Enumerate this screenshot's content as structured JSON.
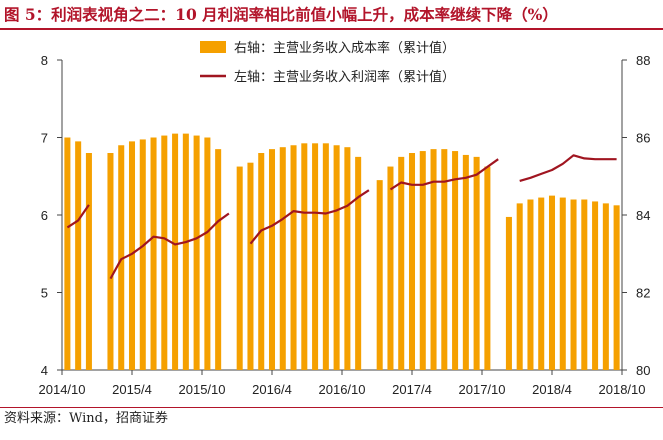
{
  "title": "图 5：利润表视角之二：10 月利润率相比前值小幅上升，成本率继续下降（%）",
  "source": "资料来源：Wind，招商证券",
  "colors": {
    "bar": "#f5a000",
    "line": "#a01520",
    "accent": "#b2142a"
  },
  "chart_data": {
    "type": "bar+line",
    "x_ticks": [
      "2014/10",
      "2015/4",
      "2015/10",
      "2016/4",
      "2016/10",
      "2017/4",
      "2017/10",
      "2018/4",
      "2018/10"
    ],
    "legend": [
      "右轴：主营业务收入成本率（累计值）",
      "左轴：主营业务收入利润率（累计值）"
    ],
    "left_axis": {
      "min": 4,
      "max": 8,
      "ticks": [
        4,
        5,
        6,
        7,
        8
      ]
    },
    "right_axis": {
      "min": 80,
      "max": 88,
      "ticks": [
        80,
        82,
        84,
        86,
        88
      ]
    },
    "series": [
      {
        "name": "右轴：主营业务收入成本率（累计值）",
        "axis": "right",
        "type": "bar",
        "values": [
          86.0,
          85.9,
          85.6,
          null,
          85.6,
          85.8,
          85.9,
          85.95,
          86.0,
          86.05,
          86.1,
          86.1,
          86.05,
          86.0,
          85.7,
          null,
          85.25,
          85.35,
          85.6,
          85.7,
          85.75,
          85.8,
          85.85,
          85.85,
          85.85,
          85.8,
          85.75,
          85.5,
          null,
          84.9,
          85.25,
          85.5,
          85.6,
          85.65,
          85.7,
          85.7,
          85.65,
          85.55,
          85.5,
          85.25,
          null,
          83.95,
          84.3,
          84.4,
          84.45,
          84.5,
          84.45,
          84.4,
          84.4,
          84.35,
          84.3,
          84.25
        ]
      },
      {
        "name": "左轴：主营业务收入利润率（累计值）",
        "axis": "left",
        "type": "line",
        "values": [
          5.84,
          5.93,
          6.13,
          null,
          5.18,
          5.43,
          5.5,
          5.6,
          5.72,
          5.7,
          5.62,
          5.65,
          5.7,
          5.78,
          5.92,
          6.02,
          null,
          5.63,
          5.8,
          5.86,
          5.95,
          6.05,
          6.03,
          6.03,
          6.02,
          6.06,
          6.12,
          6.23,
          6.32,
          null,
          6.33,
          6.42,
          6.39,
          6.39,
          6.43,
          6.43,
          6.46,
          6.48,
          6.52,
          6.62,
          6.72,
          null,
          6.44,
          6.48,
          6.53,
          6.58,
          6.66,
          6.77,
          6.73,
          6.72,
          6.72,
          6.72
        ]
      }
    ]
  }
}
